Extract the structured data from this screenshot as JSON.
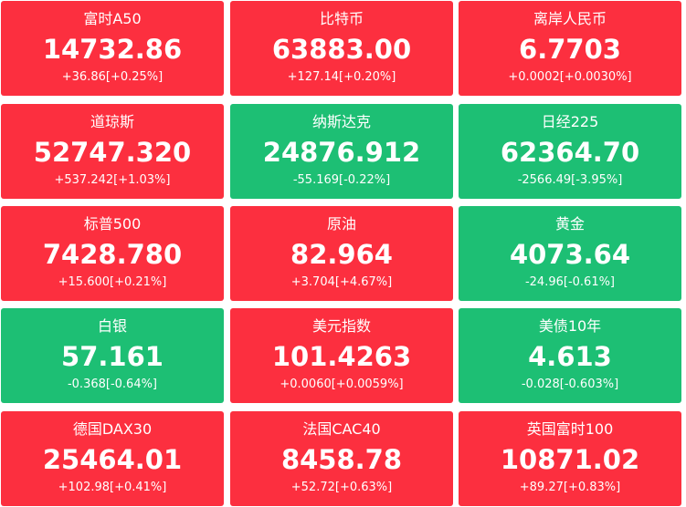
{
  "tiles": [
    {
      "name": "富时A50",
      "price": "14732.86",
      "change": "+36.86[+0.25%]",
      "color": "#fc2f3f"
    },
    {
      "name": "比特币",
      "price": "63883.00",
      "change": "+127.14[+0.20%]",
      "color": "#fc2f3f"
    },
    {
      "name": "离岸人民币",
      "price": "6.7703",
      "change": "+0.0002[+0.0030%]",
      "color": "#fc2f3f"
    },
    {
      "name": "道琼斯",
      "price": "52747.320",
      "change": "+537.242[+1.03%]",
      "color": "#fc2f3f"
    },
    {
      "name": "纳斯达克",
      "price": "24876.912",
      "change": "-55.169[-0.22%]",
      "color": "#1dbf74"
    },
    {
      "name": "日经225",
      "price": "62364.70",
      "change": "-2566.49[-3.95%]",
      "color": "#1dbf74"
    },
    {
      "name": "标普500",
      "price": "7428.780",
      "change": "+15.600[+0.21%]",
      "color": "#fc2f3f"
    },
    {
      "name": "原油",
      "price": "82.964",
      "change": "+3.704[+4.67%]",
      "color": "#fc2f3f"
    },
    {
      "name": "黄金",
      "price": "4073.64",
      "change": "-24.96[-0.61%]",
      "color": "#1dbf74"
    },
    {
      "name": "白银",
      "price": "57.161",
      "change": "-0.368[-0.64%]",
      "color": "#1dbf74"
    },
    {
      "name": "美元指数",
      "price": "101.4263",
      "change": "+0.0060[+0.0059%]",
      "color": "#fc2f3f"
    },
    {
      "name": "美债10年",
      "price": "4.613",
      "change": "-0.028[-0.603%]",
      "color": "#1dbf74"
    },
    {
      "name": "德国DAX30",
      "price": "25464.01",
      "change": "+102.98[+0.41%]",
      "color": "#fc2f3f"
    },
    {
      "name": "法国CAC40",
      "price": "8458.78",
      "change": "+52.72[+0.63%]",
      "color": "#fc2f3f"
    },
    {
      "name": "英国富时100",
      "price": "10871.02",
      "change": "+89.27[+0.83%]",
      "color": "#fc2f3f"
    }
  ]
}
